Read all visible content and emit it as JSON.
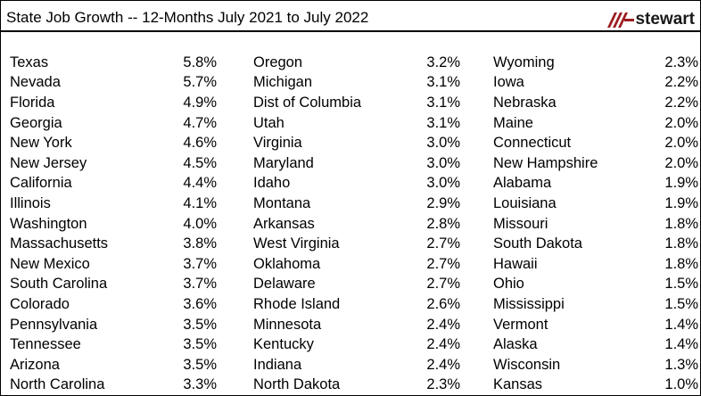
{
  "header": {
    "title": "State Job Growth -- 12-Months July 2021 to July 2022",
    "logo_icon": "stewart-logo-icon",
    "logo_text": "stewart",
    "logo_color": "#9b1c1f"
  },
  "columns": [
    [
      {
        "state": "Texas",
        "pct": "5.8%"
      },
      {
        "state": "Nevada",
        "pct": "5.7%"
      },
      {
        "state": "Florida",
        "pct": "4.9%"
      },
      {
        "state": "Georgia",
        "pct": "4.7%"
      },
      {
        "state": "New York",
        "pct": "4.6%"
      },
      {
        "state": "New Jersey",
        "pct": "4.5%"
      },
      {
        "state": "California",
        "pct": "4.4%"
      },
      {
        "state": "Illinois",
        "pct": "4.1%"
      },
      {
        "state": "Washington",
        "pct": "4.0%"
      },
      {
        "state": "Massachusetts",
        "pct": "3.8%"
      },
      {
        "state": "New Mexico",
        "pct": "3.7%"
      },
      {
        "state": "South Carolina",
        "pct": "3.7%"
      },
      {
        "state": "Colorado",
        "pct": "3.6%"
      },
      {
        "state": "Pennsylvania",
        "pct": "3.5%"
      },
      {
        "state": "Tennessee",
        "pct": "3.5%"
      },
      {
        "state": "Arizona",
        "pct": "3.5%"
      },
      {
        "state": "North Carolina",
        "pct": "3.3%"
      }
    ],
    [
      {
        "state": "Oregon",
        "pct": "3.2%"
      },
      {
        "state": "Michigan",
        "pct": "3.1%"
      },
      {
        "state": "Dist of Columbia",
        "pct": "3.1%"
      },
      {
        "state": "Utah",
        "pct": "3.1%"
      },
      {
        "state": "Virginia",
        "pct": "3.0%"
      },
      {
        "state": "Maryland",
        "pct": "3.0%"
      },
      {
        "state": "Idaho",
        "pct": "3.0%"
      },
      {
        "state": "Montana",
        "pct": "2.9%"
      },
      {
        "state": "Arkansas",
        "pct": "2.8%"
      },
      {
        "state": "West Virginia",
        "pct": "2.7%"
      },
      {
        "state": "Oklahoma",
        "pct": "2.7%"
      },
      {
        "state": "Delaware",
        "pct": "2.7%"
      },
      {
        "state": "Rhode Island",
        "pct": "2.6%"
      },
      {
        "state": "Minnesota",
        "pct": "2.4%"
      },
      {
        "state": "Kentucky",
        "pct": "2.4%"
      },
      {
        "state": "Indiana",
        "pct": "2.4%"
      },
      {
        "state": "North Dakota",
        "pct": "2.3%"
      }
    ],
    [
      {
        "state": "Wyoming",
        "pct": "2.3%"
      },
      {
        "state": "Iowa",
        "pct": "2.2%"
      },
      {
        "state": "Nebraska",
        "pct": "2.2%"
      },
      {
        "state": "Maine",
        "pct": "2.0%"
      },
      {
        "state": "Connecticut",
        "pct": "2.0%"
      },
      {
        "state": "New Hampshire",
        "pct": "2.0%"
      },
      {
        "state": "Alabama",
        "pct": "1.9%"
      },
      {
        "state": "Louisiana",
        "pct": "1.9%"
      },
      {
        "state": "Missouri",
        "pct": "1.8%"
      },
      {
        "state": "South Dakota",
        "pct": "1.8%"
      },
      {
        "state": "Hawaii",
        "pct": "1.8%"
      },
      {
        "state": "Ohio",
        "pct": "1.5%"
      },
      {
        "state": "Mississippi",
        "pct": "1.5%"
      },
      {
        "state": "Vermont",
        "pct": "1.4%"
      },
      {
        "state": "Alaska",
        "pct": "1.4%"
      },
      {
        "state": "Wisconsin",
        "pct": "1.3%"
      },
      {
        "state": "Kansas",
        "pct": "1.0%"
      }
    ]
  ]
}
